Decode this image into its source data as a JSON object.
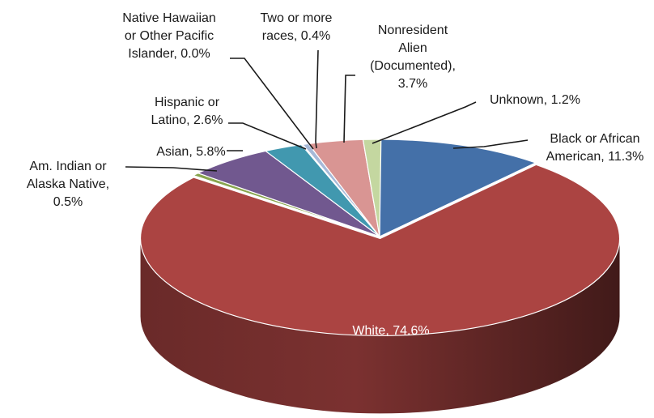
{
  "chart_data": {
    "type": "pie",
    "title": "",
    "slices": [
      {
        "name": "Black or African American",
        "value": 11.3,
        "color": "#4470a8",
        "label_lines": [
          "Black or African",
          "American, 11.3%"
        ]
      },
      {
        "name": "White",
        "value": 74.6,
        "color": "#ab4442",
        "label_lines": [
          "White, 74.6%"
        ]
      },
      {
        "name": "Am. Indian or Alaska Native",
        "value": 0.5,
        "color": "#89a54e",
        "label_lines": [
          "Am. Indian or",
          "Alaska Native,",
          "0.5%"
        ]
      },
      {
        "name": "Asian",
        "value": 5.8,
        "color": "#71588f",
        "label_lines": [
          "Asian, 5.8%"
        ]
      },
      {
        "name": "Hispanic or Latino",
        "value": 2.6,
        "color": "#4198af",
        "label_lines": [
          "Hispanic or",
          "Latino, 2.6%"
        ]
      },
      {
        "name": "Native Hawaiian or Other Pacific Islander",
        "value": 0.0,
        "color": "#8fa6c9",
        "label_lines": [
          "Native Hawaiian",
          "or Other Pacific",
          "Islander, 0.0%"
        ]
      },
      {
        "name": "Two or more races",
        "value": 0.4,
        "color": "#a6b9d8",
        "label_lines": [
          "Two or more",
          "races, 0.4%"
        ]
      },
      {
        "name": "Nonresident Alien (Documented)",
        "value": 3.7,
        "color": "#d99593",
        "label_lines": [
          "Nonresident",
          "Alien",
          "(Documented),",
          "3.7%"
        ]
      },
      {
        "name": "Unknown",
        "value": 1.2,
        "color": "#c4d7a0",
        "label_lines": [
          "Unknown, 1.2%"
        ]
      }
    ],
    "style": "3d-exploded-pie",
    "legend": "none"
  }
}
